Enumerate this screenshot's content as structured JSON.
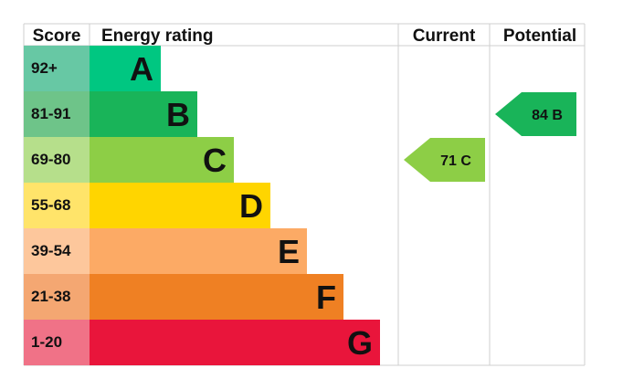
{
  "chart_data": {
    "type": "bar",
    "title": "",
    "headers": {
      "score": "Score",
      "rating": "Energy rating",
      "current": "Current",
      "potential": "Potential"
    },
    "bands": [
      {
        "score": "92+",
        "letter": "A",
        "color": "#00c781",
        "score_bg": "#67c8a4"
      },
      {
        "score": "81-91",
        "letter": "B",
        "color": "#19b459",
        "score_bg": "#6ec489"
      },
      {
        "score": "69-80",
        "letter": "C",
        "color": "#8dce46",
        "score_bg": "#b6df8b"
      },
      {
        "score": "55-68",
        "letter": "D",
        "color": "#ffd500",
        "score_bg": "#ffe46a"
      },
      {
        "score": "39-54",
        "letter": "E",
        "color": "#fcaa65",
        "score_bg": "#fdc79c"
      },
      {
        "score": "21-38",
        "letter": "F",
        "color": "#ef8023",
        "score_bg": "#f4a772"
      },
      {
        "score": "1-20",
        "letter": "G",
        "color": "#e9153b",
        "score_bg": "#f07287"
      }
    ],
    "current": {
      "value": 71,
      "band": "C",
      "label": "71 C",
      "color": "#8dce46"
    },
    "potential": {
      "value": 84,
      "band": "B",
      "label": "84 B",
      "color": "#19b459"
    },
    "grid_color": "#cfcfcf"
  }
}
